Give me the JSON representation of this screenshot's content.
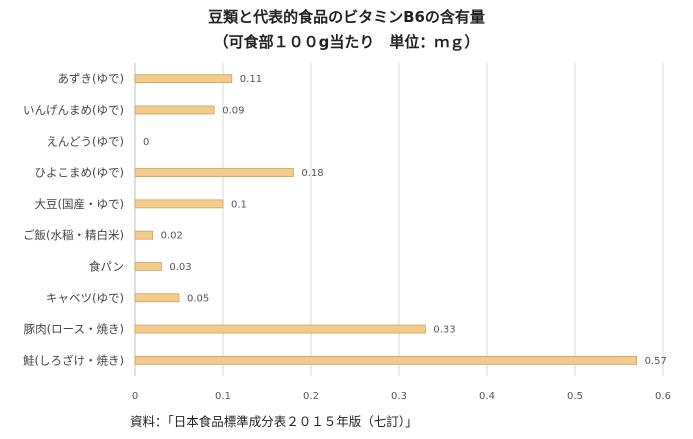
{
  "chart_data": {
    "type": "bar",
    "orientation": "horizontal",
    "title": "豆類と代表的食品のビタミンB6の含有量",
    "subtitle": "（可食部１００g当たり　単位：ｍｇ）",
    "categories": [
      "あずき(ゆで)",
      "いんげんまめ(ゆで)",
      "えんどう(ゆで)",
      "ひよこまめ(ゆで)",
      "大豆(国産・ゆで)",
      "ご飯(水稲・精白米)",
      "食パン",
      "キャベツ(ゆで)",
      "豚肉(ロース・焼き)",
      "鮭(しろざけ・焼き)"
    ],
    "values": [
      0.11,
      0.09,
      0,
      0.18,
      0.1,
      0.02,
      0.03,
      0.05,
      0.33,
      0.57
    ],
    "data_labels": [
      "0.11",
      "0.09",
      "0",
      "0.18",
      "0.1",
      "0.02",
      "0.03",
      "0.05",
      "0.33",
      "0.57"
    ],
    "xlim": [
      0,
      0.6
    ],
    "xticks": [
      "0",
      "0.1",
      "0.2",
      "0.3",
      "0.4",
      "0.5",
      "0.6"
    ],
    "xlabel": "",
    "ylabel": "",
    "grid": "vertical",
    "legend": "none",
    "bar_color": "#F3CC8B",
    "bar_edge_color": "#C9A35E"
  },
  "source_note": "資料：「日本食品標準成分表２０１５年版（七訂）」"
}
